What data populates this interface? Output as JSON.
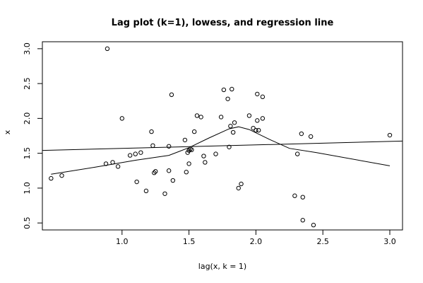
{
  "chart_data": {
    "type": "scatter",
    "title": "Lag plot (k=1), lowess, and regression line",
    "xlabel": "lag(x, k = 1)",
    "ylabel": "x",
    "xlim": [
      0.405,
      3.095
    ],
    "ylim": [
      0.4,
      3.1
    ],
    "xticks": [
      1.0,
      1.5,
      2.0,
      2.5,
      3.0
    ],
    "xtick_labels": [
      "1.0",
      "1.5",
      "2.0",
      "2.5",
      "3.0"
    ],
    "yticks": [
      0.5,
      1.0,
      1.5,
      2.0,
      2.5,
      3.0
    ],
    "ytick_labels": [
      "0.5",
      "1.0",
      "1.5",
      "2.0",
      "2.5",
      "3.0"
    ],
    "grid": false,
    "legend": "none",
    "points": [
      [
        0.47,
        1.14
      ],
      [
        0.55,
        1.18
      ],
      [
        0.88,
        1.35
      ],
      [
        0.89,
        3.0
      ],
      [
        0.93,
        1.37
      ],
      [
        0.97,
        1.31
      ],
      [
        1.0,
        2.0
      ],
      [
        1.06,
        1.47
      ],
      [
        1.1,
        1.49
      ],
      [
        1.11,
        1.09
      ],
      [
        1.14,
        1.51
      ],
      [
        1.18,
        0.96
      ],
      [
        1.22,
        1.81
      ],
      [
        1.23,
        1.61
      ],
      [
        1.24,
        1.22
      ],
      [
        1.25,
        1.24
      ],
      [
        1.32,
        0.92
      ],
      [
        1.35,
        1.6
      ],
      [
        1.35,
        1.25
      ],
      [
        1.37,
        2.34
      ],
      [
        1.38,
        1.11
      ],
      [
        1.47,
        1.69
      ],
      [
        1.48,
        1.23
      ],
      [
        1.49,
        1.51
      ],
      [
        1.5,
        1.54
      ],
      [
        1.5,
        1.35
      ],
      [
        1.51,
        1.56
      ],
      [
        1.52,
        1.55
      ],
      [
        1.54,
        1.81
      ],
      [
        1.56,
        2.04
      ],
      [
        1.59,
        2.02
      ],
      [
        1.61,
        1.46
      ],
      [
        1.62,
        1.37
      ],
      [
        1.7,
        1.49
      ],
      [
        1.74,
        2.02
      ],
      [
        1.76,
        2.41
      ],
      [
        1.79,
        2.28
      ],
      [
        1.8,
        1.59
      ],
      [
        1.81,
        1.89
      ],
      [
        1.82,
        2.42
      ],
      [
        1.83,
        1.8
      ],
      [
        1.84,
        1.94
      ],
      [
        1.87,
        1.0
      ],
      [
        1.89,
        1.06
      ],
      [
        1.95,
        2.04
      ],
      [
        1.98,
        1.86
      ],
      [
        2.0,
        1.83
      ],
      [
        2.01,
        2.35
      ],
      [
        2.01,
        1.97
      ],
      [
        2.02,
        1.83
      ],
      [
        2.05,
        2.0
      ],
      [
        2.05,
        2.31
      ],
      [
        2.29,
        0.89
      ],
      [
        2.31,
        1.49
      ],
      [
        2.34,
        1.78
      ],
      [
        2.35,
        0.54
      ],
      [
        2.35,
        0.87
      ],
      [
        2.41,
        1.74
      ],
      [
        2.43,
        0.47
      ],
      [
        3.0,
        1.76
      ]
    ],
    "lowess": [
      [
        0.47,
        1.2
      ],
      [
        0.8,
        1.3
      ],
      [
        1.1,
        1.4
      ],
      [
        1.35,
        1.47
      ],
      [
        1.5,
        1.58
      ],
      [
        1.65,
        1.72
      ],
      [
        1.8,
        1.85
      ],
      [
        1.87,
        1.88
      ],
      [
        1.95,
        1.84
      ],
      [
        2.1,
        1.7
      ],
      [
        2.25,
        1.57
      ],
      [
        2.45,
        1.51
      ],
      [
        3.0,
        1.32
      ]
    ],
    "regression": {
      "intercept": 1.52,
      "slope": 0.05
    }
  }
}
